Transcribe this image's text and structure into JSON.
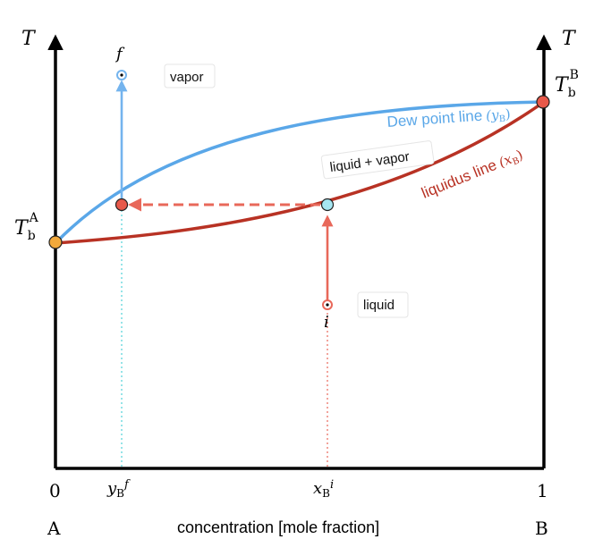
{
  "axes": {
    "left_axis_label": "T",
    "right_axis_label": "T",
    "x_axis_label": "concentration [mole fraction]",
    "x_min_label": "0",
    "x_max_label": "1",
    "left_component": "A",
    "right_component": "B"
  },
  "points": {
    "tb_a": {
      "main": "T",
      "sub": "b",
      "sup": "A"
    },
    "tb_b": {
      "main": "T",
      "sub": "b",
      "sup": "B"
    },
    "f_label": "f",
    "i_label": "i"
  },
  "tick_labels": {
    "yb_f": {
      "main": "y",
      "sub": "B",
      "sup": "f"
    },
    "xb_i": {
      "main": "x",
      "sub": "B",
      "sup": "i"
    }
  },
  "curves": {
    "dew_label": "Dew point line",
    "dew_var": "(y",
    "dew_var_sub": "B",
    "dew_var_close": ")",
    "liquidus_label": "liquidus line",
    "liquidus_var": "(x",
    "liquidus_var_sub": "B",
    "liquidus_var_close": ")"
  },
  "regions": {
    "vapor": "vapor",
    "two_phase": "liquid + vapor",
    "liquid": "liquid"
  },
  "colors": {
    "dew": "#5aa7e8",
    "liquidus": "#b83224",
    "arrow_red": "#e8685a",
    "arrow_blue": "#74b4ee",
    "dot_orange": "#f2a93b",
    "dot_red": "#e8594a",
    "dot_cyan": "#a6e6f2"
  }
}
